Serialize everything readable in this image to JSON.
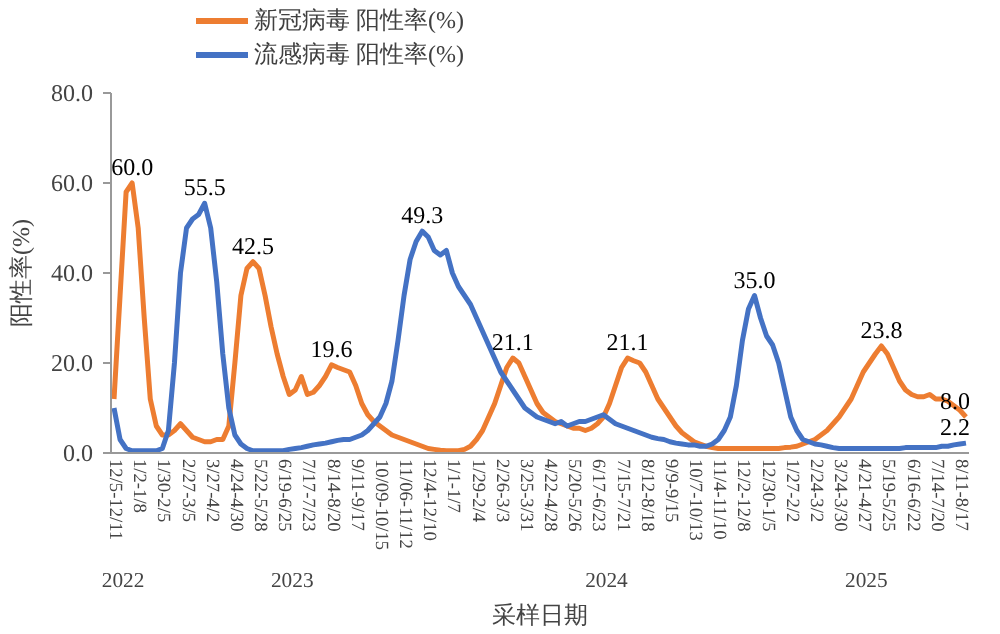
{
  "chart_data": {
    "type": "line",
    "xlabel": "采样日期",
    "ylabel": "阳性率(%)",
    "categories": [
      "12/5-12/11",
      null,
      null,
      null,
      "1/2-1/8",
      null,
      null,
      null,
      "1/30-2/5",
      null,
      null,
      null,
      "2/27-3/5",
      null,
      null,
      null,
      "3/27-4/2",
      null,
      null,
      null,
      "4/24-4/30",
      null,
      null,
      null,
      "5/22-5/28",
      null,
      null,
      null,
      "6/19-6/25",
      null,
      null,
      null,
      "7/17-7/23",
      null,
      null,
      null,
      "8/14-8/20",
      null,
      null,
      null,
      "9/11-9/17",
      null,
      null,
      null,
      "10/09-10/15",
      null,
      null,
      null,
      "11/06-11/12",
      null,
      null,
      null,
      "12/4-12/10",
      null,
      null,
      null,
      "1/1-1/7",
      null,
      null,
      null,
      "1/29-2/4",
      null,
      null,
      null,
      "2/26-3/3",
      null,
      null,
      null,
      "3/25-3/31",
      null,
      null,
      null,
      "4/22-4/28",
      null,
      null,
      null,
      "5/20-5/26",
      null,
      null,
      null,
      "6/17-6/23",
      null,
      null,
      null,
      "7/15-7/21",
      null,
      null,
      null,
      "8/12-8/18",
      null,
      null,
      null,
      "9/9-9/15",
      null,
      null,
      null,
      "10/7-10/13",
      null,
      null,
      null,
      "11/4-11/10",
      null,
      null,
      null,
      "12/2-12/8",
      null,
      null,
      null,
      "12/30-1/5",
      null,
      null,
      null,
      "1/27-2/2",
      null,
      null,
      null,
      "2/24-3/2",
      null,
      null,
      null,
      "3/24-3/30",
      null,
      null,
      null,
      "4/21-4/27",
      null,
      null,
      null,
      "5/19-5/25",
      null,
      null,
      null,
      "6/16-6/22",
      null,
      null,
      null,
      "7/14-7/20",
      null,
      null,
      null,
      "8/11-8/17",
      null
    ],
    "series": [
      {
        "name": "新冠病毒 阳性率(%)",
        "color": "#ed7d31",
        "values": [
          12,
          35,
          58,
          60.0,
          50,
          30,
          12,
          6,
          4,
          4,
          5,
          6.5,
          5,
          3.5,
          3,
          2.5,
          2.5,
          3,
          3,
          6,
          20,
          35,
          41,
          42.5,
          41,
          35,
          28,
          22,
          17,
          13,
          14,
          17,
          13,
          13.5,
          15,
          17,
          19.6,
          19,
          18.5,
          18,
          15,
          11,
          8.5,
          7,
          6,
          5,
          4,
          3.5,
          3,
          2.5,
          2,
          1.5,
          1,
          0.8,
          0.6,
          0.5,
          0.5,
          0.5,
          0.8,
          1.5,
          3,
          5,
          8,
          11,
          15,
          19,
          21.1,
          20,
          17,
          14,
          11,
          9,
          8,
          7,
          6.5,
          6,
          5.5,
          5.5,
          5,
          5.5,
          6.5,
          8,
          11,
          15,
          19,
          21.1,
          20.5,
          20,
          18,
          15,
          12,
          10,
          8,
          6,
          4.5,
          3.5,
          2.5,
          2,
          1.5,
          1.2,
          1,
          1,
          1,
          1,
          1,
          1,
          1,
          1,
          1,
          1,
          1,
          1.2,
          1.3,
          1.5,
          2,
          2.5,
          3,
          4,
          5,
          6.5,
          8,
          10,
          12,
          15,
          18,
          20,
          22,
          23.8,
          22,
          19,
          16,
          14,
          13,
          12.5,
          12.5,
          13,
          12,
          12,
          11.5,
          10.5,
          9.5,
          8.0
        ],
        "value_labels": [
          null,
          null,
          null,
          "60.0",
          null,
          null,
          null,
          null,
          null,
          null,
          null,
          null,
          null,
          null,
          null,
          null,
          null,
          null,
          null,
          null,
          null,
          null,
          null,
          "42.5",
          null,
          null,
          null,
          null,
          null,
          null,
          null,
          null,
          null,
          null,
          null,
          null,
          "19.6",
          null,
          null,
          null,
          null,
          null,
          null,
          null,
          null,
          null,
          null,
          null,
          null,
          null,
          null,
          null,
          null,
          null,
          null,
          null,
          null,
          null,
          null,
          null,
          null,
          null,
          null,
          null,
          null,
          null,
          "21.1",
          null,
          null,
          null,
          null,
          null,
          null,
          null,
          null,
          null,
          null,
          null,
          null,
          null,
          null,
          null,
          null,
          null,
          null,
          "21.1",
          null,
          null,
          null,
          null,
          null,
          null,
          null,
          null,
          null,
          null,
          null,
          null,
          null,
          null,
          null,
          null,
          null,
          null,
          null,
          null,
          null,
          null,
          null,
          null,
          null,
          null,
          null,
          null,
          null,
          null,
          null,
          null,
          null,
          null,
          null,
          null,
          null,
          null,
          null,
          null,
          null,
          "23.8",
          null,
          null,
          null,
          null,
          null,
          null,
          null,
          null,
          null,
          null,
          null,
          null,
          null,
          "8.0"
        ]
      },
      {
        "name": "流感病毒 阳性率(%)",
        "color": "#4472c4",
        "values": [
          10,
          3,
          1,
          0.5,
          0.5,
          0.5,
          0.5,
          0.5,
          1,
          5,
          20,
          40,
          50,
          52,
          53,
          55.5,
          50,
          38,
          22,
          10,
          4,
          2,
          1,
          0.5,
          0.5,
          0.5,
          0.5,
          0.5,
          0.5,
          0.8,
          1,
          1.2,
          1.5,
          1.8,
          2,
          2.2,
          2.5,
          2.8,
          3,
          3,
          3.5,
          4,
          5,
          6.5,
          8,
          11,
          16,
          25,
          35,
          43,
          47,
          49.3,
          48,
          45,
          44,
          45,
          40,
          37,
          35,
          33,
          30,
          27,
          24,
          21,
          18,
          16,
          14,
          12,
          10,
          9,
          8,
          7.5,
          7,
          6.5,
          7,
          6,
          6.5,
          7,
          7,
          7.5,
          8,
          8.5,
          7.5,
          6.5,
          6,
          5.5,
          5,
          4.5,
          4,
          3.5,
          3.2,
          3,
          2.5,
          2.2,
          2,
          1.8,
          1.8,
          1.5,
          1.5,
          2,
          3,
          5,
          8,
          15,
          25,
          32,
          35.0,
          30,
          26,
          24,
          20,
          14,
          8,
          5,
          3,
          2.5,
          2,
          1.8,
          1.5,
          1.2,
          1,
          1,
          1,
          1,
          1,
          1,
          1,
          1,
          1,
          1,
          1,
          1.2,
          1.2,
          1.2,
          1.2,
          1.2,
          1.2,
          1.5,
          1.5,
          1.8,
          2,
          2.2
        ],
        "value_labels": [
          null,
          null,
          null,
          null,
          null,
          null,
          null,
          null,
          null,
          null,
          null,
          null,
          null,
          null,
          null,
          "55.5",
          null,
          null,
          null,
          null,
          null,
          null,
          null,
          null,
          null,
          null,
          null,
          null,
          null,
          null,
          null,
          null,
          null,
          null,
          null,
          null,
          null,
          null,
          null,
          null,
          null,
          null,
          null,
          null,
          null,
          null,
          null,
          null,
          null,
          null,
          null,
          "49.3",
          null,
          null,
          null,
          null,
          null,
          null,
          null,
          null,
          null,
          null,
          null,
          null,
          null,
          null,
          null,
          null,
          null,
          null,
          null,
          null,
          null,
          null,
          null,
          null,
          null,
          null,
          null,
          null,
          null,
          null,
          null,
          null,
          null,
          null,
          null,
          null,
          null,
          null,
          null,
          null,
          null,
          null,
          null,
          null,
          null,
          null,
          null,
          null,
          null,
          null,
          null,
          null,
          null,
          null,
          "35.0",
          null,
          null,
          null,
          null,
          null,
          null,
          null,
          null,
          null,
          null,
          null,
          null,
          null,
          null,
          null,
          null,
          null,
          null,
          null,
          null,
          null,
          null,
          null,
          null,
          null,
          null,
          null,
          null,
          null,
          null,
          null,
          null,
          null,
          null,
          "2.2"
        ]
      }
    ],
    "ylim": [
      0,
      80
    ],
    "yticks": [
      {
        "value": 0,
        "label": "0.0"
      },
      {
        "value": 20,
        "label": "20.0"
      },
      {
        "value": 40,
        "label": "40.0"
      },
      {
        "value": 60,
        "label": "60.0"
      },
      {
        "value": 80,
        "label": "80.0"
      }
    ],
    "annotations": [
      "2022",
      "2023",
      "2024",
      "2025"
    ],
    "legend": "top left",
    "grid": false,
    "marker": "none",
    "line_style": "solid"
  }
}
